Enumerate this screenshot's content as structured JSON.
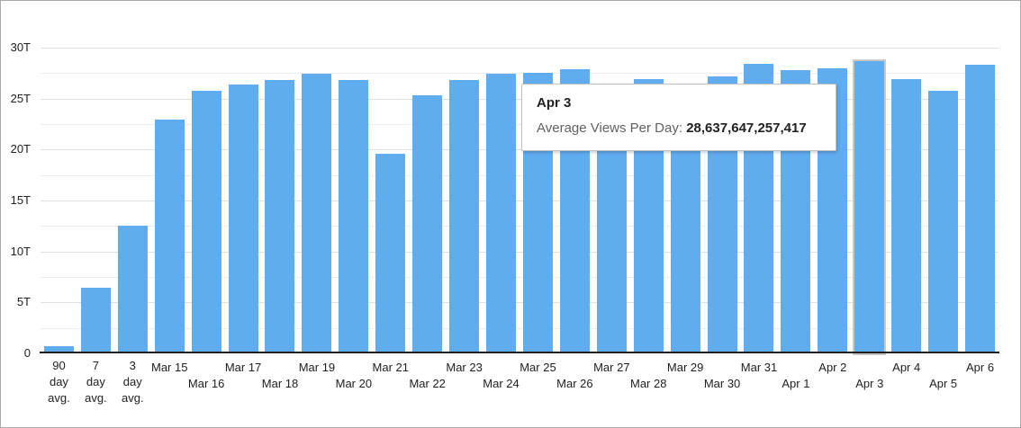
{
  "tooltip": {
    "title": "Apr 3",
    "label": "Average Views Per Day: ",
    "value": "28,637,647,257,417"
  },
  "chart_data": {
    "type": "bar",
    "title": "",
    "xlabel": "",
    "ylabel": "",
    "unit": "T",
    "ylim_trillions": [
      0,
      30
    ],
    "y_major_ticks_trillions": [
      30,
      25,
      20,
      15,
      10,
      5,
      0
    ],
    "y_major_tick_labels": [
      "30T",
      "25T",
      "20T",
      "15T",
      "10T",
      "5T",
      "0"
    ],
    "y_minor_ticks_trillions": [
      27.5,
      22.5,
      17.5,
      12.5,
      7.5,
      2.5
    ],
    "grid": "horizontal, major and minor, no vertical grid",
    "legend": "none",
    "bar_color": "#5FACEE",
    "highlight_outline_color": "#c8c8c8",
    "highlighted_category": "Apr 3",
    "categories": [
      "90 day avg.",
      "7 day avg.",
      "3 day avg.",
      "Mar 15",
      "Mar 16",
      "Mar 17",
      "Mar 18",
      "Mar 19",
      "Mar 20",
      "Mar 21",
      "Mar 22",
      "Mar 23",
      "Mar 24",
      "Mar 25",
      "Mar 26",
      "Mar 27",
      "Mar 28",
      "Mar 29",
      "Mar 30",
      "Mar 31",
      "Apr 1",
      "Apr 2",
      "Apr 3",
      "Apr 4",
      "Apr 5",
      "Apr 6"
    ],
    "values_trillions": [
      0.7,
      6.4,
      12.5,
      22.9,
      25.8,
      26.4,
      26.8,
      27.4,
      26.8,
      19.6,
      25.3,
      26.8,
      27.4,
      27.5,
      27.9,
      26.3,
      26.9,
      26.3,
      27.2,
      28.4,
      27.8,
      28.0,
      28.64,
      26.9,
      25.8,
      28.3
    ],
    "selected_point": {
      "category": "Apr 3",
      "series_label": "Average Views Per Day",
      "exact_value": "28,637,647,257,417"
    }
  }
}
